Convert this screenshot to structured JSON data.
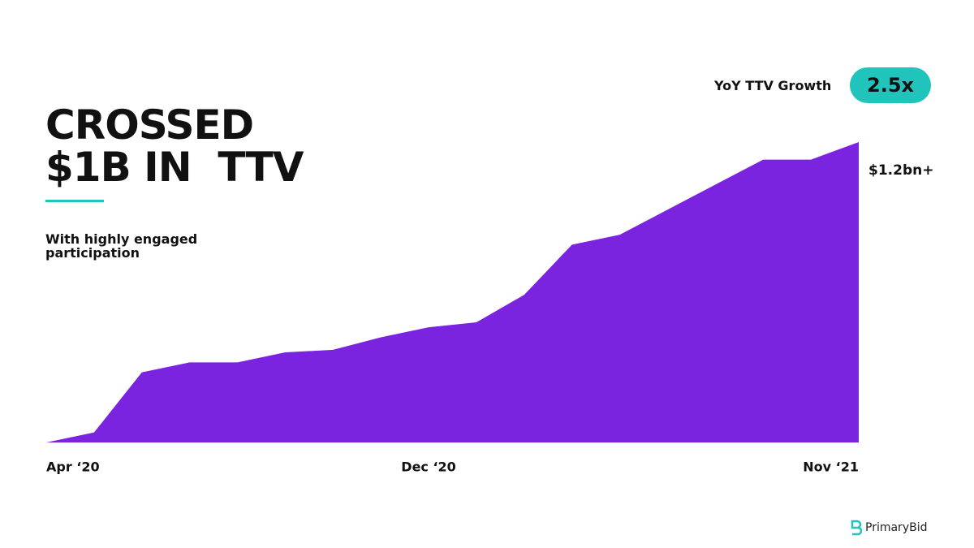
{
  "chart_data": {
    "type": "area",
    "title": [
      "CROSSED",
      "$1B IN  TTV"
    ],
    "subtitle": "With highly engaged participation",
    "badge_label": "YoY TTV Growth",
    "badge_value": "2.5x",
    "end_label": "$1.2bn+",
    "categories": [
      "Apr ‘20",
      null,
      null,
      null,
      null,
      null,
      null,
      null,
      "Dec ‘20",
      null,
      null,
      null,
      null,
      null,
      null,
      null,
      null,
      "Nov ‘21"
    ],
    "values": [
      0,
      0.04,
      0.28,
      0.32,
      0.32,
      0.36,
      0.37,
      0.42,
      0.46,
      0.48,
      0.59,
      0.79,
      0.83,
      0.93,
      1.03,
      1.13,
      1.13,
      1.2
    ],
    "color": "#7b24e0",
    "ylim": [
      0,
      1.2
    ]
  },
  "brand": "PrimaryBid"
}
